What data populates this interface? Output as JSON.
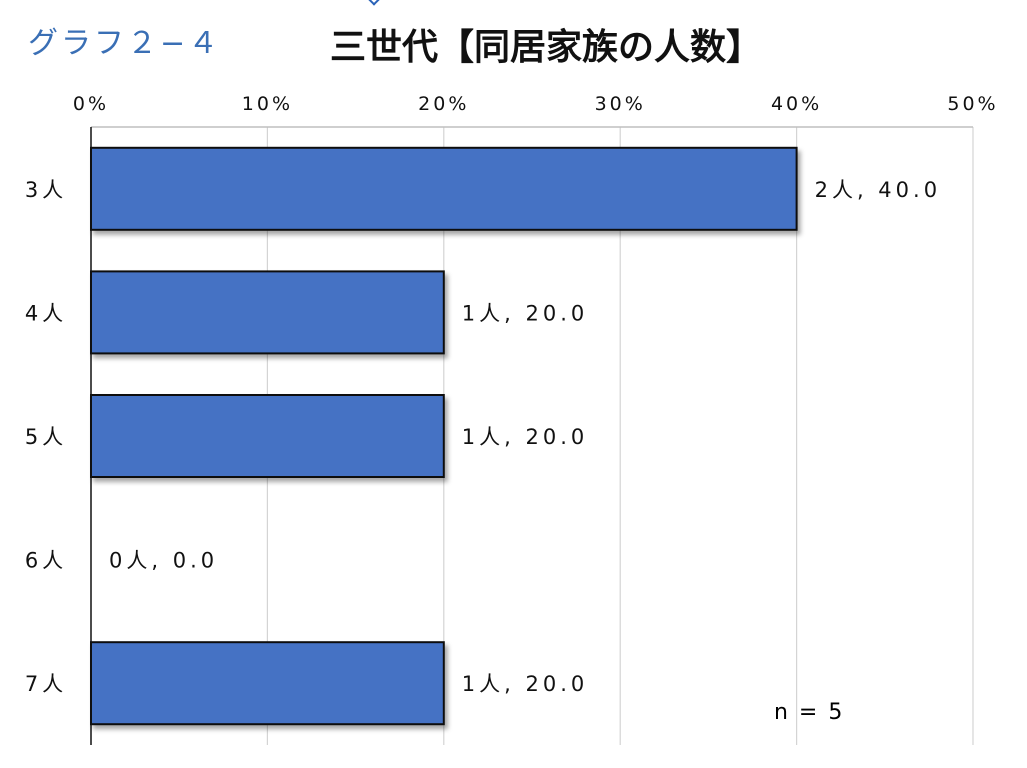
{
  "header": {
    "graph_label": "グラフ２−４"
  },
  "chart_data": {
    "type": "bar",
    "orientation": "horizontal",
    "title": "三世代【同居家族の人数】",
    "categories": [
      "3人",
      "4人",
      "5人",
      "6人",
      "7人"
    ],
    "counts": [
      2,
      1,
      1,
      0,
      1
    ],
    "values": [
      40.0,
      20.0,
      20.0,
      0.0,
      20.0
    ],
    "data_labels": [
      "2人, 40.0",
      "1人, 20.0",
      "1人, 20.0",
      "0人, 0.0",
      "1人, 20.0"
    ],
    "x_ticks": [
      "0%",
      "10%",
      "20%",
      "30%",
      "40%",
      "50%"
    ],
    "xlim": [
      0,
      50
    ],
    "grid": true,
    "bar_color": "#4472c4",
    "annotation": "n = 5"
  }
}
